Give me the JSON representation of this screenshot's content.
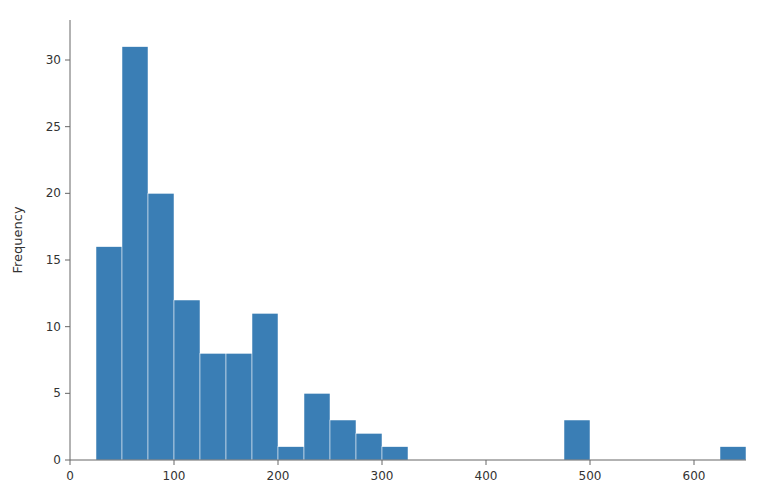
{
  "chart_data": {
    "type": "histogram",
    "ylabel": "Frequency",
    "bins": [
      0,
      25,
      50,
      75,
      100,
      125,
      150,
      175,
      200,
      225,
      250,
      275,
      300,
      325,
      475,
      500,
      625,
      650
    ],
    "values": [
      0,
      16,
      31,
      20,
      12,
      8,
      8,
      11,
      1,
      5,
      3,
      2,
      1,
      0,
      3,
      0,
      1
    ],
    "color": "#3a7eb5",
    "xlim": [
      0,
      650
    ],
    "ylim": [
      0,
      33
    ],
    "xticks": [
      0,
      100,
      200,
      300,
      400,
      500,
      600
    ],
    "yticks": [
      0,
      5,
      10,
      15,
      20,
      25,
      30
    ]
  }
}
